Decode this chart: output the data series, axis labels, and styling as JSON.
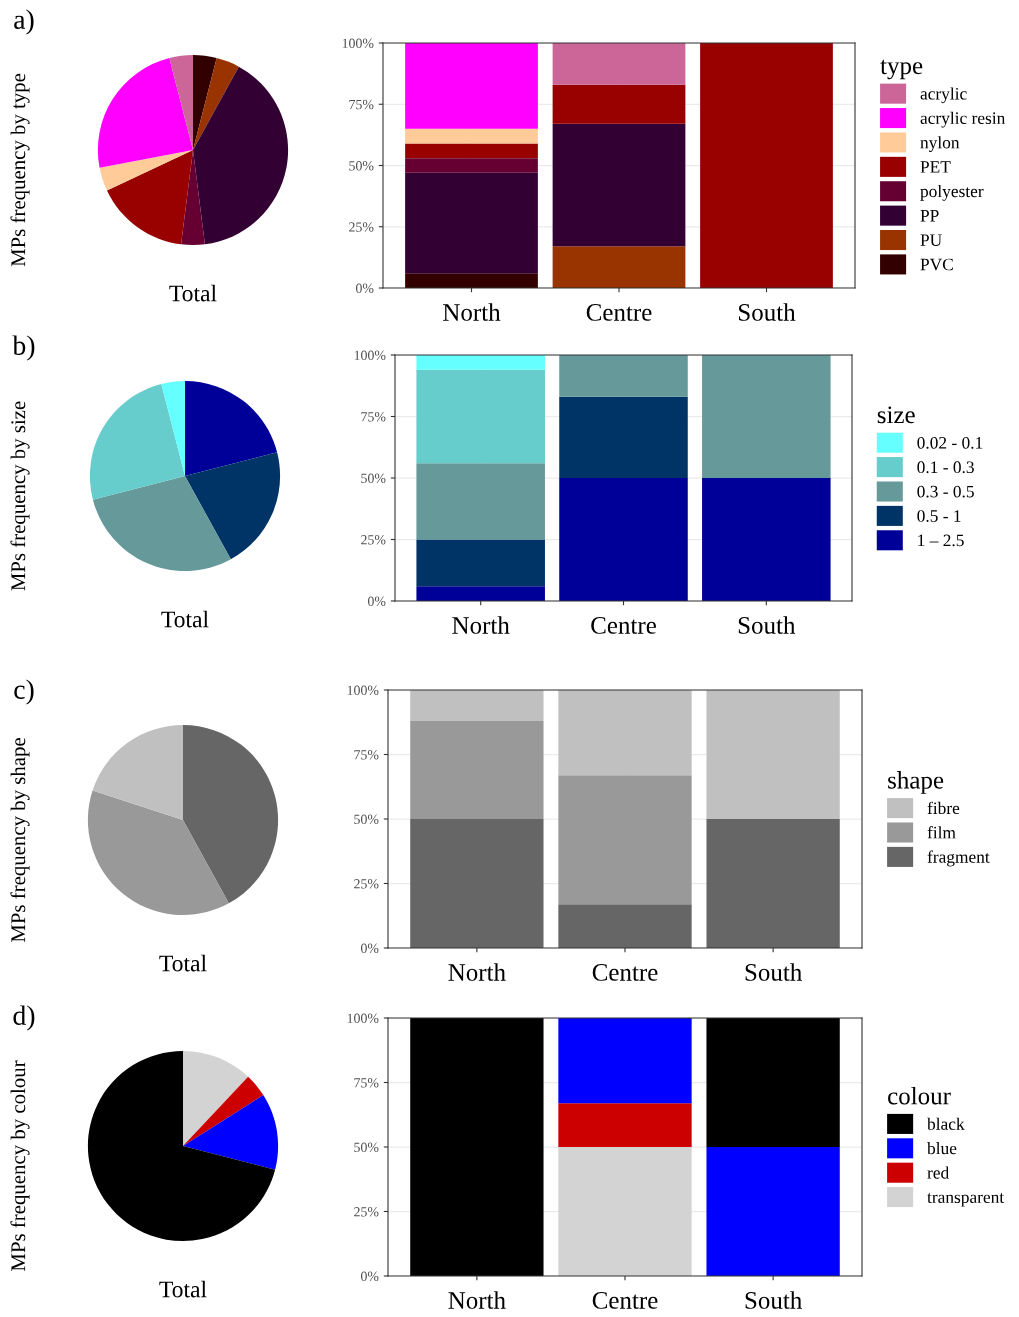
{
  "chart_data": [
    {
      "type": "pie",
      "xlabel": "Total",
      "ylabel": "MPs frequency by type",
      "annotations": [
        "a)"
      ],
      "categories": [
        null,
        null,
        null,
        null,
        null,
        null,
        null,
        null
      ],
      "values": [
        4,
        4,
        40,
        4,
        16,
        4,
        24,
        4
      ],
      "colors": [
        "#330000",
        "#993300",
        "#330033",
        "#660033",
        "#990000",
        "#ffcc99",
        "#ff00ff",
        "#cc6699"
      ]
    },
    {
      "type": "bar",
      "stacked": true,
      "categories": [
        "North",
        "Centre",
        "South"
      ],
      "ylim": [
        0,
        100
      ],
      "yticks": [
        {
          "value": 0,
          "label": "0%"
        },
        {
          "value": 25,
          "label": "25%"
        },
        {
          "value": 50,
          "label": "50%"
        },
        {
          "value": 75,
          "label": "75%"
        },
        {
          "value": 100,
          "label": "100%"
        }
      ],
      "grid": true,
      "legend": "right",
      "legend_title": "type",
      "series": [
        {
          "name": "PVC",
          "color": "#330000",
          "values": [
            6,
            0,
            0
          ]
        },
        {
          "name": "PU",
          "color": "#993300",
          "values": [
            0,
            17,
            0
          ]
        },
        {
          "name": "PP",
          "color": "#330033",
          "values": [
            41,
            50,
            0
          ]
        },
        {
          "name": "polyester",
          "color": "#660033",
          "values": [
            6,
            0,
            0
          ]
        },
        {
          "name": "PET",
          "color": "#990000",
          "values": [
            6,
            16,
            100
          ]
        },
        {
          "name": "nylon",
          "color": "#ffcc99",
          "values": [
            6,
            0,
            0
          ]
        },
        {
          "name": "acrylic resin",
          "color": "#ff00ff",
          "values": [
            35,
            0,
            0
          ]
        },
        {
          "name": "acrylic",
          "color": "#cc6699",
          "values": [
            0,
            17,
            0
          ]
        }
      ]
    },
    {
      "type": "pie",
      "xlabel": "Total",
      "ylabel": "MPs frequency by size",
      "annotations": [
        "b)"
      ],
      "categories": [
        null,
        null,
        null,
        null,
        null
      ],
      "values": [
        21,
        21,
        29,
        25,
        4
      ],
      "colors": [
        "#000099",
        "#003366",
        "#669999",
        "#66cccc",
        "#66ffff"
      ]
    },
    {
      "type": "bar",
      "stacked": true,
      "categories": [
        "North",
        "Centre",
        "South"
      ],
      "ylim": [
        0,
        100
      ],
      "yticks": [
        {
          "value": 0,
          "label": "0%"
        },
        {
          "value": 25,
          "label": "25%"
        },
        {
          "value": 50,
          "label": "50%"
        },
        {
          "value": 75,
          "label": "75%"
        },
        {
          "value": 100,
          "label": "100%"
        }
      ],
      "grid": true,
      "legend": "right",
      "legend_title": "size",
      "series": [
        {
          "name": "1 – 2.5",
          "color": "#000099",
          "values": [
            6,
            50,
            50
          ]
        },
        {
          "name": "0.5 - 1",
          "color": "#003366",
          "values": [
            19,
            33,
            0
          ]
        },
        {
          "name": "0.3 - 0.5",
          "color": "#669999",
          "values": [
            31,
            17,
            50
          ]
        },
        {
          "name": "0.1 - 0.3",
          "color": "#66cccc",
          "values": [
            38,
            0,
            0
          ]
        },
        {
          "name": "0.02 - 0.1",
          "color": "#66ffff",
          "values": [
            6,
            0,
            0
          ]
        }
      ]
    },
    {
      "type": "pie",
      "xlabel": "Total",
      "ylabel": "MPs frequency by shape",
      "annotations": [
        "c)"
      ],
      "categories": [
        null,
        null,
        null
      ],
      "values": [
        42,
        38,
        20
      ],
      "colors": [
        "#666666",
        "#999999",
        "#c0c0c0"
      ]
    },
    {
      "type": "bar",
      "stacked": true,
      "categories": [
        "North",
        "Centre",
        "South"
      ],
      "ylim": [
        0,
        100
      ],
      "yticks": [
        {
          "value": 0,
          "label": "0%"
        },
        {
          "value": 25,
          "label": "25%"
        },
        {
          "value": 50,
          "label": "50%"
        },
        {
          "value": 75,
          "label": "75%"
        },
        {
          "value": 100,
          "label": "100%"
        }
      ],
      "grid": true,
      "legend": "right",
      "legend_title": "shape",
      "series": [
        {
          "name": "fragment",
          "color": "#666666",
          "values": [
            50,
            17,
            50
          ]
        },
        {
          "name": "film",
          "color": "#999999",
          "values": [
            38,
            50,
            0
          ]
        },
        {
          "name": "fibre",
          "color": "#c0c0c0",
          "values": [
            12,
            33,
            50
          ]
        }
      ]
    },
    {
      "type": "pie",
      "xlabel": "Total",
      "ylabel": "MPs frequency by colour",
      "annotations": [
        "d)"
      ],
      "categories": [
        null,
        null,
        null,
        null
      ],
      "values": [
        12,
        4,
        13,
        71
      ],
      "colors": [
        "#d3d3d3",
        "#cc0000",
        "#0000ff",
        "#000000"
      ]
    },
    {
      "type": "bar",
      "stacked": true,
      "categories": [
        "North",
        "Centre",
        "South"
      ],
      "ylim": [
        0,
        100
      ],
      "yticks": [
        {
          "value": 0,
          "label": "0%"
        },
        {
          "value": 25,
          "label": "25%"
        },
        {
          "value": 50,
          "label": "50%"
        },
        {
          "value": 75,
          "label": "75%"
        },
        {
          "value": 100,
          "label": "100%"
        }
      ],
      "grid": true,
      "legend": "right",
      "legend_title": "colour",
      "series": [
        {
          "name": "transparent",
          "color": "#d3d3d3",
          "values": [
            0,
            50,
            0
          ]
        },
        {
          "name": "red",
          "color": "#cc0000",
          "values": [
            0,
            17,
            0
          ]
        },
        {
          "name": "blue",
          "color": "#0000ff",
          "values": [
            0,
            33,
            50
          ]
        },
        {
          "name": "black",
          "color": "#000000",
          "values": [
            100,
            0,
            50
          ]
        }
      ]
    }
  ]
}
